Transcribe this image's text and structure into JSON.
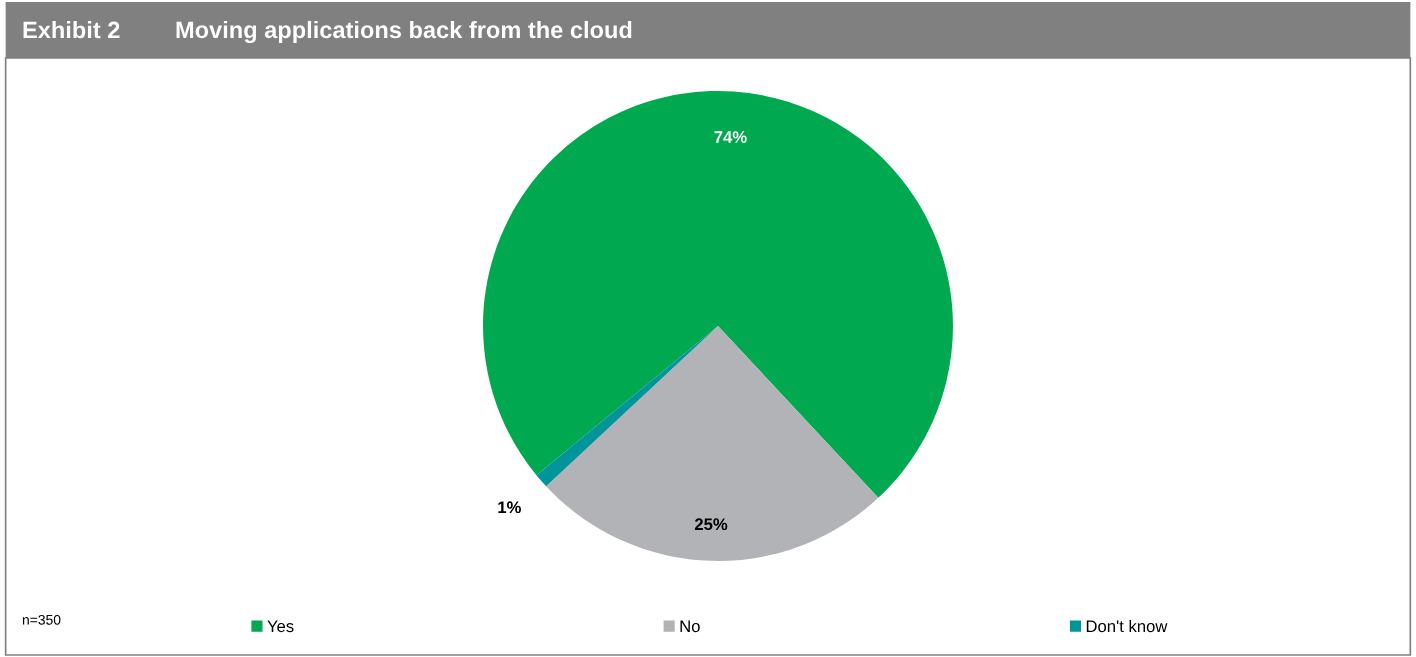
{
  "chart_data": {
    "type": "pie",
    "title": "Exhibit 2",
    "subtitle": "Moving applications back from the cloud",
    "categories": [
      "Yes",
      "No",
      "Don't know"
    ],
    "values": [
      74,
      25,
      1
    ],
    "colors": [
      "#00a94f",
      "#b1b3b6",
      "#00959a"
    ],
    "value_labels": [
      "74%",
      "25%",
      "1%"
    ],
    "legend": "bottom",
    "annotations": [
      "n=350"
    ]
  }
}
